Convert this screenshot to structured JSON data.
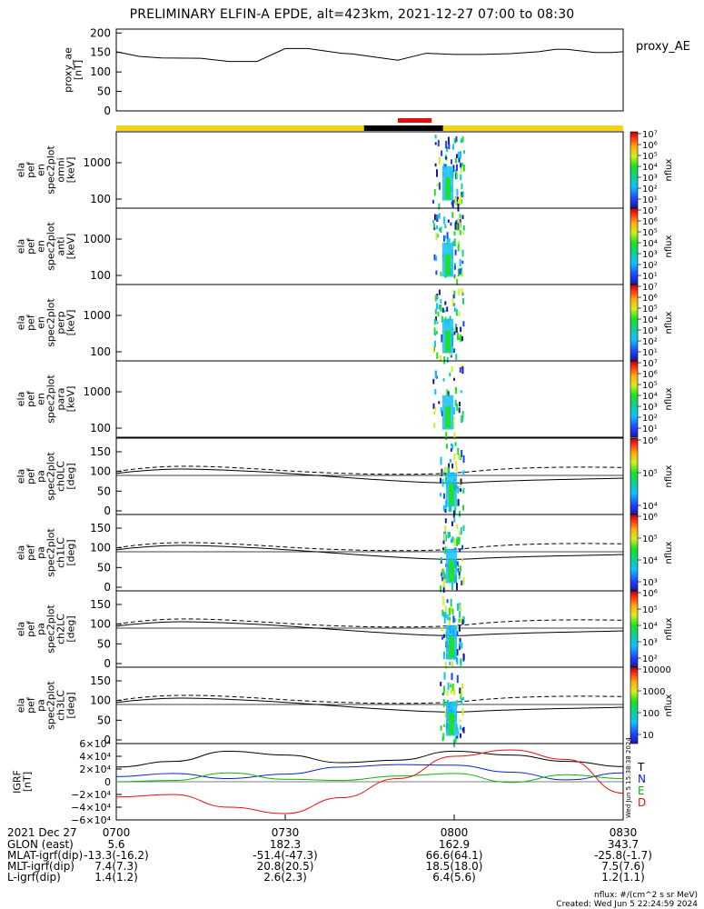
{
  "title": "PRELIMINARY ELFIN-A EPDE, alt=423km, 2021-12-27 07:00 to 08:30",
  "colors": {
    "sunlight_bar": "#f2d21a",
    "shadow_bar": "#000000",
    "science_zone": "#e01010",
    "bfield_T": "#000000",
    "bfield_N": "#1020d0",
    "bfield_E": "#10b010",
    "bfield_D": "#e01010"
  },
  "chart_data": [
    {
      "id": "proxy_ae",
      "type": "line",
      "ylabel": "proxy_ae [nT]",
      "legend": "proxy_AE",
      "yticks": [
        "200",
        "150",
        "100",
        "50",
        "0"
      ],
      "ylim": [
        0,
        210
      ],
      "x_unit": "minutes after 07:00",
      "x": [
        0,
        4,
        8,
        15,
        20,
        25,
        30,
        34,
        40,
        42,
        45,
        50,
        55,
        60,
        65,
        70,
        75,
        78,
        80,
        85,
        88,
        90
      ],
      "y": [
        152,
        140,
        136,
        135,
        127,
        127,
        160,
        160,
        148,
        146,
        140,
        130,
        148,
        145,
        145,
        147,
        152,
        158,
        158,
        150,
        150,
        152
      ]
    },
    {
      "id": "energy_spectrograms",
      "type": "heatmap",
      "panels": [
        {
          "ylabel": "ela pef en spec2plot omni [keV]",
          "yticks": [
            "1000",
            "100"
          ],
          "cbar_ticks": [
            "10⁷",
            "10⁶",
            "10⁵",
            "10⁴",
            "10³",
            "10²",
            "10¹"
          ]
        },
        {
          "ylabel": "ela pef en spec2plot anti [keV]",
          "yticks": [
            "1000",
            "100"
          ],
          "cbar_ticks": [
            "10⁷",
            "10⁶",
            "10⁵",
            "10⁴",
            "10³",
            "10²",
            "10¹"
          ]
        },
        {
          "ylabel": "ela pef en spec2plot perp [keV]",
          "yticks": [
            "1000",
            "100"
          ],
          "cbar_ticks": [
            "10⁷",
            "10⁶",
            "10⁵",
            "10⁴",
            "10³",
            "10²",
            "10¹"
          ]
        },
        {
          "ylabel": "ela pef en spec2plot para [keV]",
          "yticks": [
            "1000",
            "100"
          ],
          "cbar_ticks": [
            "10⁷",
            "10⁶",
            "10⁵",
            "10⁴",
            "10³",
            "10²",
            "10¹"
          ]
        }
      ],
      "cbar_label": "nflux"
    },
    {
      "id": "pitch_angle_spectrograms",
      "type": "heatmap",
      "panels": [
        {
          "ylabel": "ela pef pa spec2plot ch0LC [deg]",
          "yticks": [
            "150",
            "100",
            "50",
            "0"
          ],
          "cbar_ticks": [
            "10⁶",
            "10⁵",
            "10⁴"
          ]
        },
        {
          "ylabel": "ela pef pa spec2plot ch1LC [deg]",
          "yticks": [
            "150",
            "100",
            "50",
            "0"
          ],
          "cbar_ticks": [
            "10⁶",
            "10⁵",
            "10⁴",
            "10³"
          ]
        },
        {
          "ylabel": "ela pef pa spec2plot ch2LC [deg]",
          "yticks": [
            "150",
            "100",
            "50",
            "0"
          ],
          "cbar_ticks": [
            "10⁶",
            "10⁵",
            "10⁴",
            "10³",
            "10²"
          ]
        },
        {
          "ylabel": "ela pef pa spec2plot ch3LC [deg]",
          "yticks": [
            "150",
            "100",
            "50",
            "0"
          ],
          "cbar_ticks": [
            "10000",
            "1000",
            "100",
            "10"
          ]
        }
      ],
      "cbar_label": "nflux"
    },
    {
      "id": "igrf_field",
      "type": "line",
      "ylabel": "IGRF [nT]",
      "yticks": [
        "6×10⁴",
        "4×10⁴",
        "2×10⁴",
        "0",
        "−2×10⁴",
        "−4×10⁴",
        "−6×10⁴"
      ],
      "ylim": [
        -60000,
        60000
      ],
      "legend": [
        "T",
        "N",
        "E",
        "D"
      ],
      "side_stamp": "Wed Jun  5 15:38:38 2024",
      "x_unit": "minutes after 07:00",
      "x": [
        0,
        10,
        20,
        30,
        40,
        50,
        60,
        70,
        80,
        90
      ],
      "series": [
        {
          "name": "T",
          "values": [
            23000,
            32000,
            48000,
            42000,
            30000,
            34000,
            48000,
            42000,
            32000,
            24000
          ]
        },
        {
          "name": "N",
          "values": [
            8000,
            13000,
            5000,
            12000,
            23000,
            27000,
            26000,
            15000,
            3000,
            14000
          ]
        },
        {
          "name": "E",
          "values": [
            0,
            2000,
            14000,
            4000,
            2000,
            9000,
            13000,
            -1000,
            11000,
            5000
          ]
        },
        {
          "name": "D",
          "values": [
            -24000,
            -20000,
            -40000,
            -50000,
            -25000,
            5000,
            40000,
            50000,
            35000,
            -18000
          ]
        }
      ]
    }
  ],
  "time_axis": {
    "row_label": "2021 Dec 27",
    "ticks": [
      "0700",
      "0730",
      "0800",
      "0830"
    ]
  },
  "ephemeris": [
    {
      "label": "GLON (east)",
      "values": [
        "5.6",
        "182.3",
        "162.9",
        "343.7"
      ]
    },
    {
      "label": "MLAT-igrf(dip)",
      "values": [
        "-13.3(-16.2)",
        "-51.4(-47.3)",
        "66.6(64.1)",
        "-25.8(-1.7)"
      ]
    },
    {
      "label": "MLT-igrf(dip)",
      "values": [
        "7.4(7.3)",
        "20.8(20.5)",
        "18.5(18.0)",
        "7.5(7.6)"
      ]
    },
    {
      "label": "L-igrf(dip)",
      "values": [
        "1.4(1.2)",
        "2.6(2.3)",
        "6.4(5.6)",
        "1.2(1.1)"
      ]
    }
  ],
  "footer": {
    "units": "nflux: #/(cm^2 s sr MeV)",
    "created": "Created: Wed Jun  5 22:24:59 2024"
  }
}
